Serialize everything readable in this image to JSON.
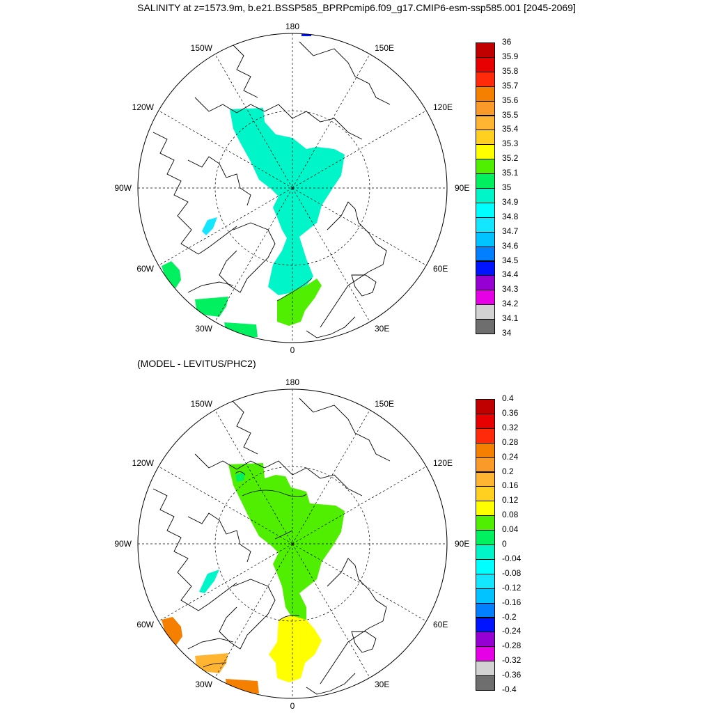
{
  "title": "SALINITY at z=1573.9m, b.e21.BSSP585_BPRPcmip6.f09_g17.CMIP6-esm-ssp585.001 [2045-2069]",
  "subtitle": "(MODEL - LEVITUS/PHC2)",
  "longitude_labels": {
    "top": "180",
    "bottom": "0",
    "left": "90W",
    "right": "90E",
    "upper_left_150": "150W",
    "upper_left_120": "120W",
    "upper_right_150": "150E",
    "upper_right_120": "120E",
    "lower_left_60": "60W",
    "lower_left_30": "30W",
    "lower_right_60": "60E",
    "lower_right_30": "30E"
  },
  "colorbar_top": {
    "labels": [
      "36",
      "35.9",
      "35.8",
      "35.7",
      "35.6",
      "35.5",
      "35.4",
      "35.3",
      "35.2",
      "35.1",
      "35",
      "34.9",
      "34.8",
      "34.7",
      "34.6",
      "34.5",
      "34.4",
      "34.3",
      "34.2",
      "34.1",
      "34"
    ],
    "colors": [
      "#c00000",
      "#e60000",
      "#ff2a0a",
      "#f58000",
      "#fa9a28",
      "#ffb432",
      "#ffd020",
      "#ffff00",
      "#50ee00",
      "#00f060",
      "#00f5c8",
      "#00ffff",
      "#14e6ff",
      "#00c3ff",
      "#0080ff",
      "#0014ff",
      "#9600d2",
      "#e600e6",
      "#d2d2d2",
      "#6e6e6e"
    ]
  },
  "colorbar_bottom": {
    "labels": [
      "0.4",
      "0.36",
      "0.32",
      "0.28",
      "0.24",
      "0.2",
      "0.16",
      "0.12",
      "0.08",
      "0.04",
      "0",
      "-0.04",
      "-0.08",
      "-0.12",
      "-0.16",
      "-0.2",
      "-0.24",
      "-0.28",
      "-0.32",
      "-0.36",
      "-0.4"
    ],
    "colors": [
      "#c00000",
      "#e60000",
      "#ff2a0a",
      "#f58000",
      "#fa9a28",
      "#ffb432",
      "#ffd020",
      "#ffff00",
      "#50ee00",
      "#00f060",
      "#00f5c8",
      "#00ffff",
      "#14e6ff",
      "#00c3ff",
      "#0080ff",
      "#0014ff",
      "#9600d2",
      "#e600e6",
      "#d2d2d2",
      "#6e6e6e"
    ]
  },
  "top_map_colors": {
    "main": "#00f5c8",
    "low_patch": "#14e6ff",
    "atlantic": "#00f060",
    "greenland_sea": "#50ee00",
    "pole_patch": "#0014ff"
  },
  "bottom_map_colors": {
    "main": "#50ee00",
    "near_zero": "#00f060",
    "atlantic": "#ffff00",
    "lab_sea": "#f58000",
    "ne_atlantic": "#ffb432",
    "low_patch": "#00f5c8"
  }
}
